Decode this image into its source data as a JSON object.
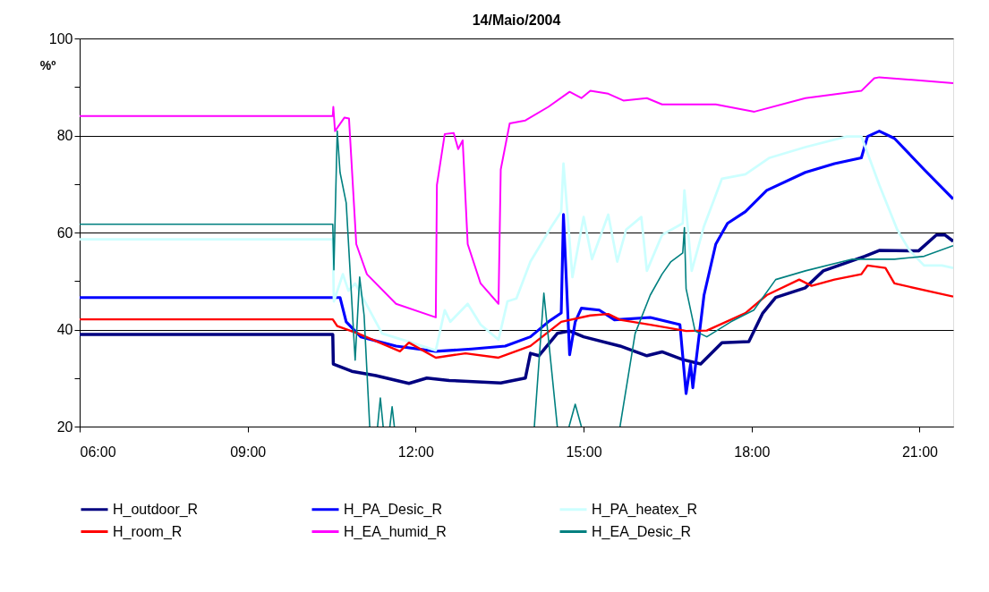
{
  "chart_data": {
    "type": "line",
    "title": "14/Maio/2004",
    "ylabel": "%º",
    "xlim": [
      6,
      21.6
    ],
    "ylim": [
      20,
      100
    ],
    "xticks": [
      {
        "value": 6,
        "label": "06:00"
      },
      {
        "value": 9,
        "label": "09:00"
      },
      {
        "value": 12,
        "label": "12:00"
      },
      {
        "value": 15,
        "label": "15:00"
      },
      {
        "value": 18,
        "label": "18:00"
      },
      {
        "value": 21,
        "label": "21:00"
      }
    ],
    "yticks": [
      20,
      {
        "value": 30,
        "label": null
      },
      40,
      {
        "value": 50,
        "label": null
      },
      60,
      {
        "value": 70,
        "label": null
      },
      80,
      {
        "value": 90,
        "label": null
      },
      100
    ],
    "grid": "y",
    "legend": "bottom",
    "series": [
      {
        "name": "H_outdoor_R",
        "color": "#000080",
        "x": [
          6,
          10.52,
          10.53,
          10.86,
          11.29,
          11.88,
          12.2,
          12.6,
          13.52,
          13.96,
          14.05,
          14.2,
          14.53,
          14.75,
          15.0,
          15.65,
          16.13,
          16.4,
          16.77,
          17.09,
          17.47,
          17.95,
          18.2,
          18.43,
          18.96,
          19.28,
          20.02,
          20.28,
          20.98,
          21.3,
          21.45,
          21.6
        ],
        "values": [
          39,
          39,
          32.9,
          31.4,
          30.5,
          28.9,
          30.0,
          29.5,
          29,
          30,
          35.1,
          34.6,
          39.2,
          39.7,
          38.5,
          36.6,
          34.6,
          35.4,
          33.8,
          32.9,
          37.3,
          37.5,
          43.4,
          46.6,
          48.6,
          52.1,
          55.1,
          56.3,
          56.2,
          59.5,
          59.5,
          58.2
        ]
      },
      {
        "name": "H_PA_Desic_R",
        "color": "#0000ff",
        "x": [
          6,
          10.52,
          10.65,
          10.76,
          11.02,
          11.65,
          12.36,
          13.0,
          13.6,
          14.05,
          14.37,
          14.6,
          14.64,
          14.75,
          14.85,
          14.96,
          15.28,
          15.55,
          16.19,
          16.72,
          16.83,
          16.91,
          16.95,
          17.15,
          17.36,
          17.57,
          17.89,
          18.27,
          18.96,
          19.48,
          19.96,
          20.07,
          20.28,
          20.55,
          21.08,
          21.6
        ],
        "values": [
          46.6,
          46.6,
          46.6,
          41.6,
          38.5,
          36.6,
          35.5,
          36,
          36.6,
          38.5,
          41.6,
          43.4,
          63.7,
          34.8,
          41.6,
          44.4,
          44.0,
          42,
          42.5,
          41,
          26.8,
          32.9,
          28,
          47.1,
          57.6,
          61.9,
          64.3,
          68.7,
          72.4,
          74.2,
          75.4,
          79.8,
          80.9,
          79.4,
          73,
          66.9
        ]
      },
      {
        "name": "H_PA_heatex_R",
        "color": "#ccffff",
        "x": [
          6,
          10.52,
          10.54,
          10.7,
          10.8,
          10.92,
          11.4,
          11.93,
          12.36,
          12.52,
          12.62,
          12.93,
          13.16,
          13.48,
          13.64,
          13.8,
          14.05,
          14.43,
          14.6,
          14.64,
          14.8,
          15.0,
          15.15,
          15.44,
          15.6,
          15.76,
          16.03,
          16.13,
          16.4,
          16.77,
          16.8,
          16.93,
          17.15,
          17.47,
          17.89,
          18.32,
          18.96,
          19.7,
          19.96,
          20.28,
          20.6,
          20.82,
          21.08,
          21.4,
          21.6
        ],
        "values": [
          58.6,
          58.6,
          45.8,
          51.4,
          48,
          49.5,
          39.2,
          37.3,
          35.7,
          44,
          41.6,
          45.3,
          41,
          37.9,
          45.8,
          46.4,
          54,
          61.3,
          64.3,
          74.2,
          50.8,
          63.2,
          54.5,
          63.7,
          54,
          60.6,
          63.2,
          52.1,
          59.5,
          61.9,
          68.7,
          52.1,
          61.3,
          71.1,
          72,
          75.4,
          77.6,
          79.8,
          79.8,
          69.8,
          60.6,
          56.3,
          53.2,
          53.2,
          52.7
        ]
      },
      {
        "name": "H_room_R",
        "color": "#ff0000",
        "x": [
          6,
          10.52,
          10.6,
          10.97,
          11.72,
          11.88,
          12.36,
          12.89,
          13.48,
          14.05,
          14.6,
          15.12,
          15.44,
          15.65,
          16.19,
          16.83,
          17.2,
          17.89,
          18.27,
          18.85,
          19.07,
          19.48,
          19.96,
          20.07,
          20.39,
          20.55,
          21.6
        ],
        "values": [
          42.1,
          42.1,
          40.7,
          39.2,
          35.5,
          37.3,
          34.2,
          35.1,
          34.2,
          36.6,
          41.6,
          42.9,
          43.2,
          42,
          41,
          39.7,
          39.8,
          43.4,
          47.1,
          50.3,
          49,
          50.3,
          51.4,
          53.2,
          52.7,
          49.5,
          46.8
        ]
      },
      {
        "name": "H_EA_humid_R",
        "color": "#ff00ff",
        "x": [
          6,
          10.52,
          10.53,
          10.56,
          10.73,
          10.81,
          10.94,
          11.13,
          11.65,
          12.36,
          12.38,
          12.52,
          12.68,
          12.76,
          12.84,
          12.93,
          13.16,
          13.48,
          13.52,
          13.68,
          13.96,
          14.37,
          14.75,
          14.96,
          15.12,
          15.44,
          15.71,
          16.13,
          16.4,
          17.36,
          18.05,
          18.96,
          19.96,
          20.19,
          20.28,
          21.6
        ],
        "values": [
          84,
          84,
          85.9,
          80.9,
          83.7,
          83.5,
          57.6,
          51.4,
          45.3,
          42.5,
          69.8,
          80.3,
          80.5,
          77.2,
          79,
          57.6,
          49.5,
          45.3,
          73,
          82.5,
          83.1,
          85.9,
          89,
          87.7,
          89.2,
          88.6,
          87.2,
          87.7,
          86.4,
          86.4,
          84.9,
          87.7,
          89.2,
          91.8,
          92,
          90.8
        ]
      },
      {
        "name": "H_EA_Desic_R",
        "color": "#008080",
        "x": [
          6,
          10.52,
          10.54,
          10.6,
          10.65,
          10.76,
          10.92,
          11.0,
          11.08,
          11.18,
          11.25,
          11.32,
          11.37,
          11.42,
          11.48,
          11.54,
          11.58,
          11.62,
          11.7,
          14.12,
          14.29,
          14.53,
          14.6,
          14.74,
          14.85,
          14.96,
          15.2,
          15.65,
          15.92,
          16.19,
          16.4,
          16.56,
          16.77,
          16.8,
          16.83,
          16.99,
          17.2,
          17.63,
          18.04,
          18.43,
          18.96,
          19.8,
          20.55,
          21.08,
          21.6
        ],
        "values": [
          61.7,
          61.7,
          52.3,
          80.9,
          72.4,
          66.1,
          33.7,
          50.8,
          42.9,
          20,
          null,
          20,
          25.9,
          20,
          null,
          20,
          24.1,
          20,
          null,
          20,
          47.5,
          20,
          null,
          20,
          24.6,
          20,
          null,
          20,
          39.2,
          47.1,
          51.4,
          54,
          55.8,
          61,
          48.4,
          39.7,
          38.5,
          41.6,
          44,
          50.3,
          52.1,
          54.5,
          54.5,
          55.1,
          57.3
        ]
      }
    ]
  }
}
